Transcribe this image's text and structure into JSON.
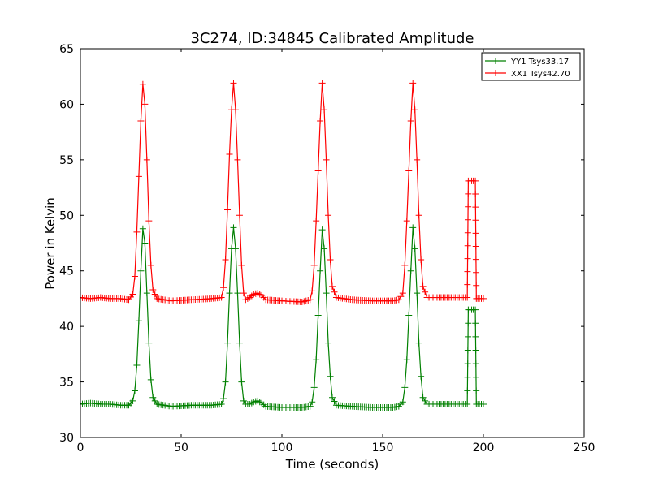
{
  "chart_data": {
    "type": "line",
    "title": "3C274, ID:34845 Calibrated Amplitude",
    "xlabel": "Time (seconds)",
    "ylabel": "Power in Kelvin",
    "xlim": [
      0,
      250
    ],
    "ylim": [
      30,
      65
    ],
    "xticks": [
      0,
      50,
      100,
      150,
      200,
      250
    ],
    "yticks": [
      30,
      35,
      40,
      45,
      50,
      55,
      60,
      65
    ],
    "grid": false,
    "legend_position": "top-right",
    "marker": "+",
    "series": [
      {
        "name": "YY1 Tsys33.17",
        "color": "#008000",
        "points": [
          [
            0,
            33.0
          ],
          [
            5,
            33.1
          ],
          [
            10,
            33.0
          ],
          [
            15,
            33.0
          ],
          [
            20,
            32.9
          ],
          [
            24,
            32.9
          ],
          [
            26,
            33.3
          ],
          [
            27,
            34.2
          ],
          [
            28,
            36.5
          ],
          [
            29,
            40.5
          ],
          [
            30,
            45.0
          ],
          [
            31,
            48.8
          ],
          [
            32,
            47.5
          ],
          [
            33,
            43.0
          ],
          [
            34,
            38.5
          ],
          [
            35,
            35.2
          ],
          [
            36,
            33.6
          ],
          [
            38,
            33.0
          ],
          [
            45,
            32.8
          ],
          [
            55,
            32.9
          ],
          [
            65,
            32.9
          ],
          [
            70,
            33.0
          ],
          [
            71,
            33.5
          ],
          [
            72,
            35.0
          ],
          [
            73,
            38.5
          ],
          [
            74,
            43.0
          ],
          [
            75,
            47.0
          ],
          [
            76,
            48.9
          ],
          [
            77,
            47.0
          ],
          [
            78,
            43.0
          ],
          [
            79,
            38.5
          ],
          [
            80,
            35.0
          ],
          [
            81,
            33.3
          ],
          [
            82,
            33.0
          ],
          [
            84,
            33.0
          ],
          [
            86,
            33.2
          ],
          [
            88,
            33.3
          ],
          [
            90,
            33.1
          ],
          [
            92,
            32.8
          ],
          [
            100,
            32.7
          ],
          [
            110,
            32.7
          ],
          [
            114,
            32.8
          ],
          [
            115,
            33.2
          ],
          [
            116,
            34.5
          ],
          [
            117,
            37.0
          ],
          [
            118,
            41.0
          ],
          [
            119,
            45.0
          ],
          [
            120,
            48.7
          ],
          [
            121,
            47.0
          ],
          [
            122,
            43.0
          ],
          [
            123,
            38.5
          ],
          [
            124,
            35.5
          ],
          [
            125,
            33.6
          ],
          [
            127,
            32.9
          ],
          [
            135,
            32.8
          ],
          [
            145,
            32.7
          ],
          [
            155,
            32.7
          ],
          [
            158,
            32.8
          ],
          [
            160,
            33.2
          ],
          [
            161,
            34.5
          ],
          [
            162,
            37.0
          ],
          [
            163,
            41.0
          ],
          [
            164,
            45.0
          ],
          [
            165,
            48.9
          ],
          [
            166,
            47.0
          ],
          [
            167,
            43.0
          ],
          [
            168,
            38.5
          ],
          [
            169,
            35.5
          ],
          [
            170,
            33.6
          ],
          [
            172,
            33.0
          ],
          [
            180,
            33.0
          ],
          [
            190,
            33.0
          ],
          [
            192,
            33.0
          ],
          [
            192.5,
            41.5
          ],
          [
            195,
            41.5
          ],
          [
            196,
            41.5
          ],
          [
            196.5,
            33.0
          ],
          [
            198,
            33.0
          ],
          [
            200,
            33.0
          ]
        ]
      },
      {
        "name": "XX1 Tsys42.70",
        "color": "#ff0000",
        "points": [
          [
            0,
            42.6
          ],
          [
            5,
            42.5
          ],
          [
            10,
            42.6
          ],
          [
            15,
            42.5
          ],
          [
            20,
            42.5
          ],
          [
            24,
            42.4
          ],
          [
            26,
            42.9
          ],
          [
            27,
            44.5
          ],
          [
            28,
            48.5
          ],
          [
            29,
            53.5
          ],
          [
            30,
            58.5
          ],
          [
            31,
            61.8
          ],
          [
            32,
            60.0
          ],
          [
            33,
            55.0
          ],
          [
            34,
            49.5
          ],
          [
            35,
            45.5
          ],
          [
            36,
            43.3
          ],
          [
            38,
            42.5
          ],
          [
            45,
            42.3
          ],
          [
            55,
            42.4
          ],
          [
            65,
            42.5
          ],
          [
            70,
            42.6
          ],
          [
            71,
            43.5
          ],
          [
            72,
            46.0
          ],
          [
            73,
            50.5
          ],
          [
            74,
            55.5
          ],
          [
            75,
            59.5
          ],
          [
            76,
            61.9
          ],
          [
            77,
            59.5
          ],
          [
            78,
            55.0
          ],
          [
            79,
            50.0
          ],
          [
            80,
            45.5
          ],
          [
            81,
            43.0
          ],
          [
            82,
            42.4
          ],
          [
            84,
            42.6
          ],
          [
            86,
            42.9
          ],
          [
            88,
            43.0
          ],
          [
            90,
            42.8
          ],
          [
            92,
            42.4
          ],
          [
            100,
            42.3
          ],
          [
            110,
            42.2
          ],
          [
            114,
            42.4
          ],
          [
            115,
            43.2
          ],
          [
            116,
            45.5
          ],
          [
            117,
            49.5
          ],
          [
            118,
            54.0
          ],
          [
            119,
            58.5
          ],
          [
            120,
            61.9
          ],
          [
            121,
            59.5
          ],
          [
            122,
            55.0
          ],
          [
            123,
            50.0
          ],
          [
            124,
            46.0
          ],
          [
            125,
            43.6
          ],
          [
            127,
            42.6
          ],
          [
            135,
            42.4
          ],
          [
            145,
            42.3
          ],
          [
            155,
            42.3
          ],
          [
            158,
            42.4
          ],
          [
            160,
            43.0
          ],
          [
            161,
            45.5
          ],
          [
            162,
            49.5
          ],
          [
            163,
            54.0
          ],
          [
            164,
            58.5
          ],
          [
            165,
            61.9
          ],
          [
            166,
            59.5
          ],
          [
            167,
            55.0
          ],
          [
            168,
            50.0
          ],
          [
            169,
            46.0
          ],
          [
            170,
            43.6
          ],
          [
            172,
            42.6
          ],
          [
            180,
            42.6
          ],
          [
            190,
            42.6
          ],
          [
            192,
            42.6
          ],
          [
            192.5,
            53.1
          ],
          [
            195,
            53.1
          ],
          [
            196,
            53.1
          ],
          [
            196.5,
            42.5
          ],
          [
            198,
            42.5
          ],
          [
            200,
            42.5
          ]
        ]
      }
    ]
  }
}
